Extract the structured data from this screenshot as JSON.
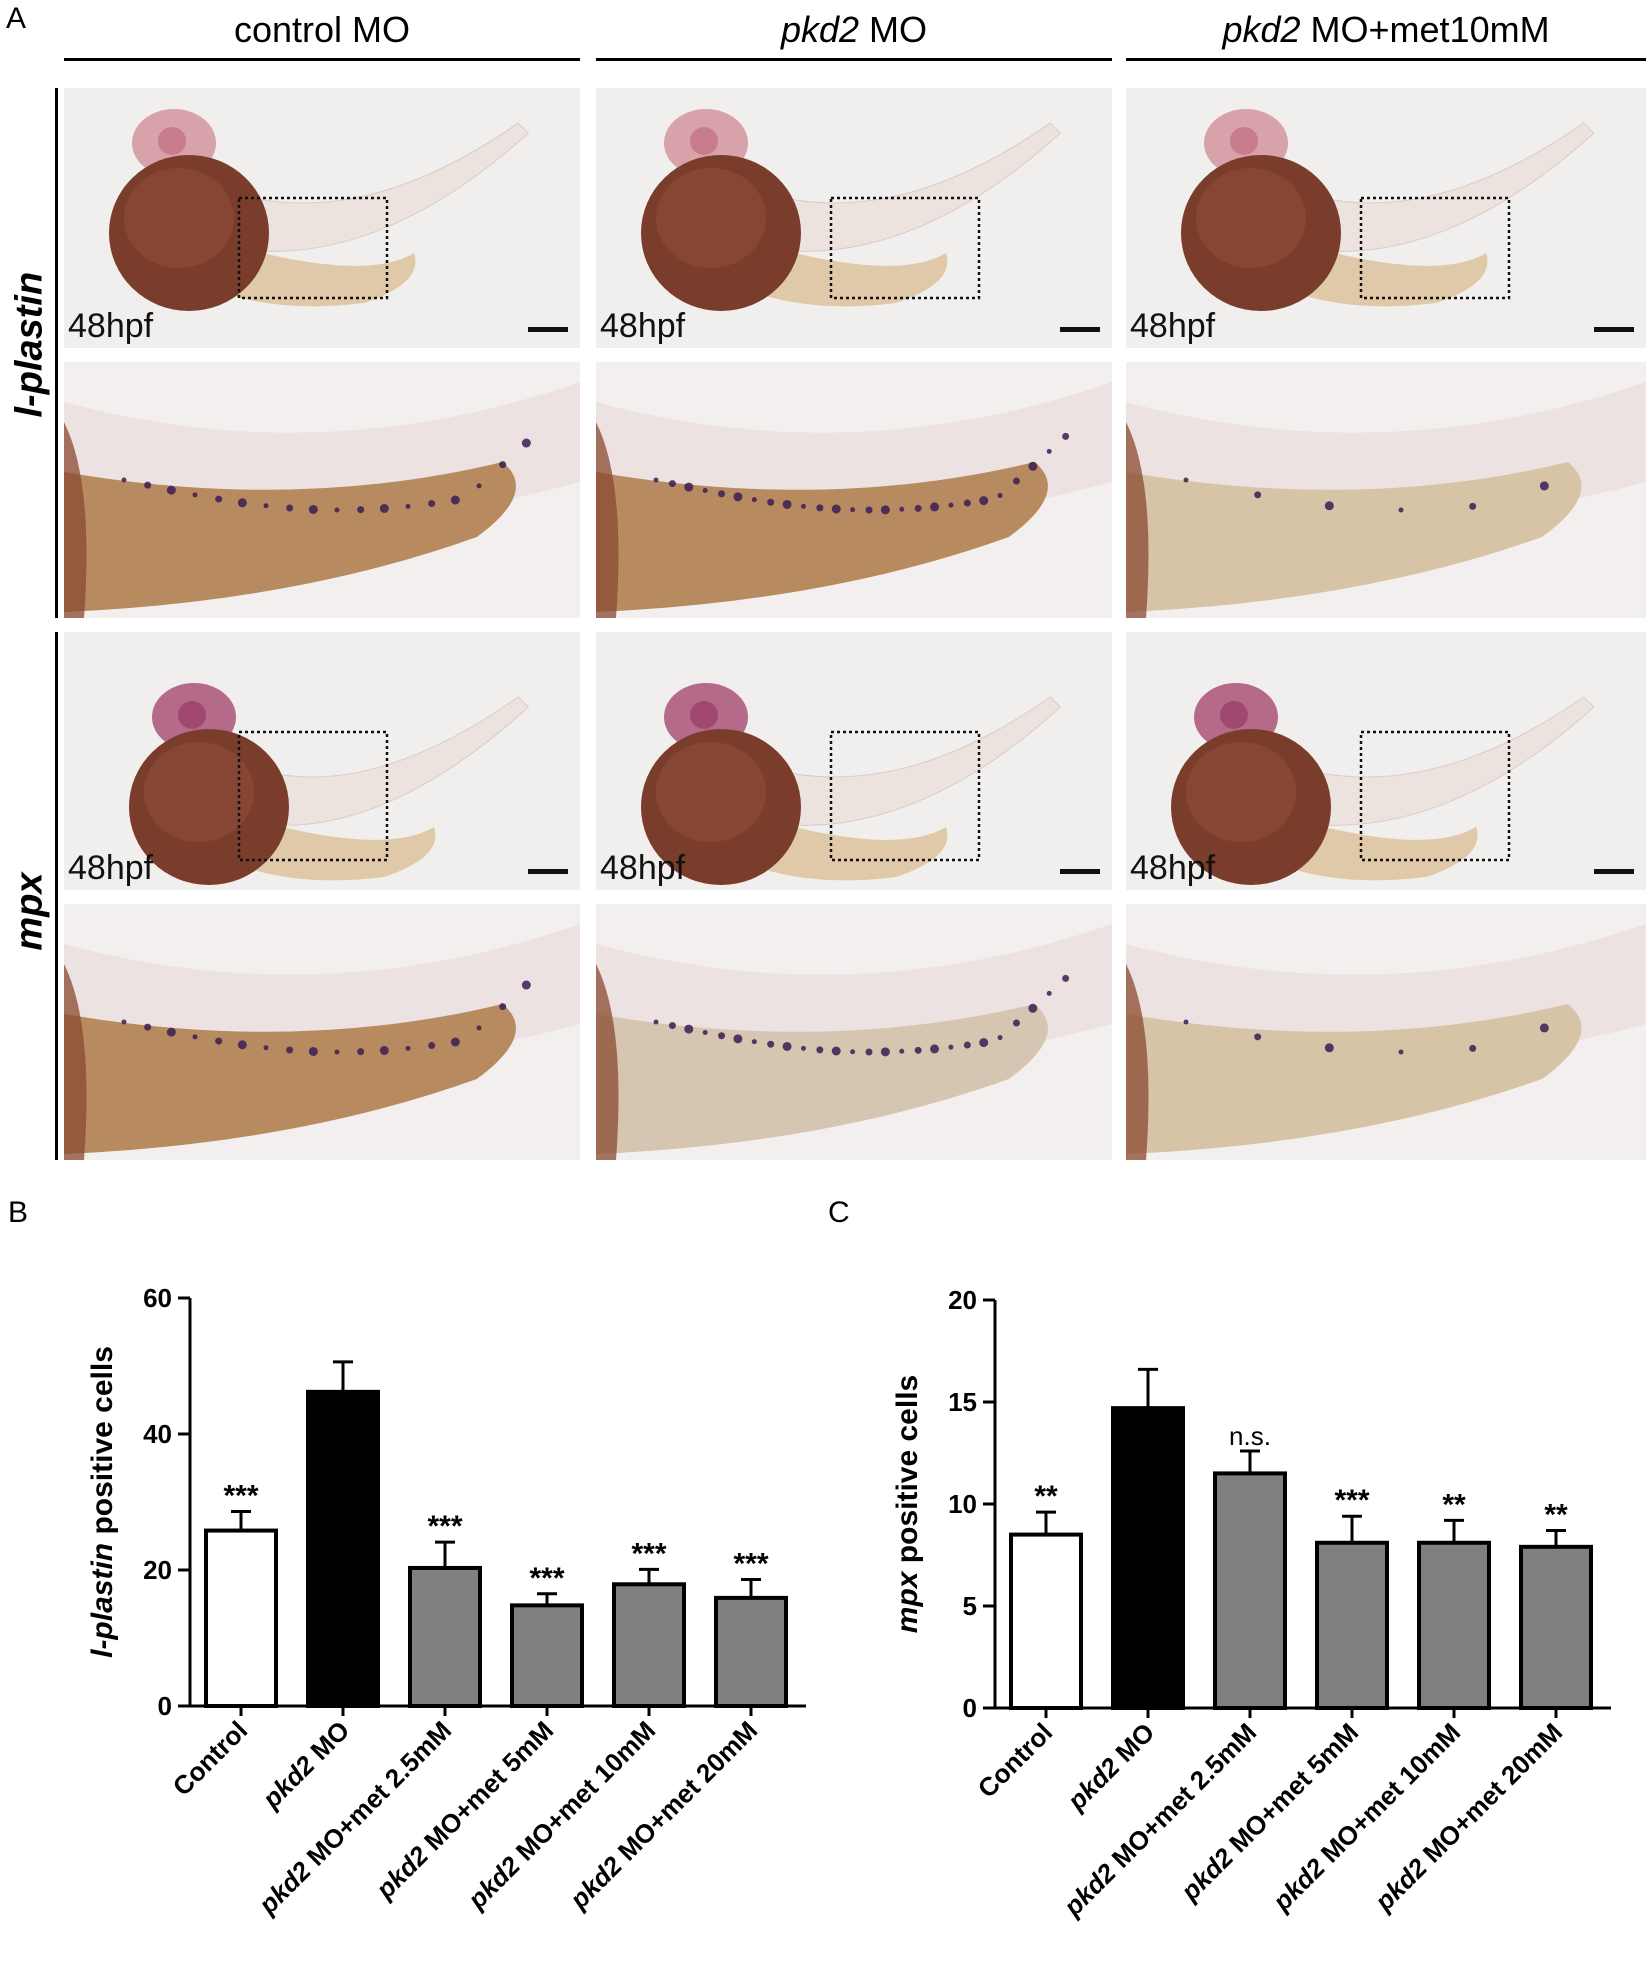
{
  "figure": {
    "panel_letters": {
      "a": "A",
      "b": "B",
      "c": "C"
    },
    "column_headers": [
      {
        "italic": "",
        "rest": "control MO"
      },
      {
        "italic": "pkd2",
        "rest": " MO"
      },
      {
        "italic": "pkd2",
        "rest": " MO+met10mM"
      }
    ],
    "row_labels": [
      "l-plastin",
      "mpx"
    ],
    "stage_label": "48hpf"
  },
  "chart_data": [
    {
      "type": "bar",
      "ylabel_italic": "l-plastin",
      "ylabel_rest": " positive cells",
      "ylim": [
        0,
        60
      ],
      "yticks": [
        0,
        20,
        40,
        60
      ],
      "categories": [
        {
          "italic": "",
          "rest": "Control"
        },
        {
          "italic": "pkd2",
          "rest": " MO"
        },
        {
          "italic": "pkd2",
          "rest": " MO+met 2.5mM"
        },
        {
          "italic": "pkd2",
          "rest": " MO+met 5mM"
        },
        {
          "italic": "pkd2",
          "rest": " MO+met 10mM"
        },
        {
          "italic": "pkd2",
          "rest": " MO+met 20mM"
        }
      ],
      "values": [
        25.8,
        46.2,
        20.3,
        14.8,
        17.9,
        15.9
      ],
      "errors": [
        2.8,
        4.4,
        3.8,
        1.7,
        2.2,
        2.7
      ],
      "significance": [
        "***",
        "",
        "***",
        "***",
        "***",
        "***"
      ],
      "bar_colors": [
        "#ffffff",
        "#000000",
        "#808080",
        "#808080",
        "#808080",
        "#808080"
      ]
    },
    {
      "type": "bar",
      "ylabel_italic": "mpx",
      "ylabel_rest": " positive cells",
      "ylim": [
        0,
        20
      ],
      "yticks": [
        0,
        5,
        10,
        15,
        20
      ],
      "categories": [
        {
          "italic": "",
          "rest": "Control"
        },
        {
          "italic": "pkd2",
          "rest": " MO"
        },
        {
          "italic": "pkd2",
          "rest": " MO+met 2.5mM"
        },
        {
          "italic": "pkd2",
          "rest": " MO+met 5mM"
        },
        {
          "italic": "pkd2",
          "rest": " MO+met 10mM"
        },
        {
          "italic": "pkd2",
          "rest": " MO+met 20mM"
        }
      ],
      "values": [
        8.5,
        14.7,
        11.5,
        8.1,
        8.1,
        7.9
      ],
      "errors": [
        1.1,
        1.9,
        1.1,
        1.3,
        1.1,
        0.8
      ],
      "significance": [
        "**",
        "",
        "n.s.",
        "***",
        "**",
        "**"
      ],
      "bar_colors": [
        "#ffffff",
        "#000000",
        "#808080",
        "#808080",
        "#808080",
        "#808080"
      ]
    }
  ]
}
